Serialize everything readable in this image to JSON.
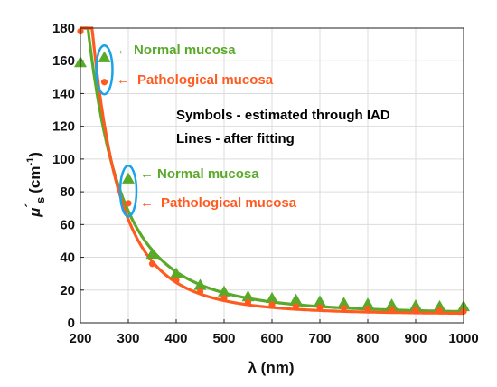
{
  "chart_data": {
    "type": "scatter",
    "title": "",
    "xlabel": "λ (nm)",
    "ylabel_main": "μ",
    "ylabel_prime": "´",
    "ylabel_sub": "s",
    "ylabel_unit_open": "(cm",
    "ylabel_unit_exp": "-1",
    "ylabel_unit_close": ")",
    "xlim": [
      200,
      1000
    ],
    "ylim": [
      0,
      180
    ],
    "xticks": [
      200,
      300,
      400,
      500,
      600,
      700,
      800,
      900,
      1000
    ],
    "yticks": [
      0,
      20,
      40,
      60,
      80,
      100,
      120,
      140,
      160,
      180
    ],
    "grid": true,
    "x": [
      200,
      350,
      400,
      450,
      500,
      550,
      600,
      650,
      700,
      750,
      800,
      850,
      900,
      950,
      1000
    ],
    "series": [
      {
        "name": "Normal mucosa",
        "marker": "triangle",
        "color": "#5aaa2a",
        "values": [
          159,
          42,
          30,
          23,
          19,
          16,
          15,
          14,
          13,
          12,
          11.5,
          11,
          10.5,
          10,
          10
        ]
      },
      {
        "name": "Pathological mucosa",
        "marker": "circle",
        "color": "#ff5a1f",
        "values": [
          178,
          36,
          26,
          19,
          15,
          12.5,
          11,
          10,
          9.5,
          9,
          8.5,
          8,
          8,
          7.5,
          7
        ]
      }
    ],
    "fits": [
      {
        "series": "Normal mucosa",
        "color": "#5aaa2a",
        "a": 3000000000.0,
        "b": 3.1,
        "c": 5.4
      },
      {
        "series": "Pathological mucosa",
        "color": "#ff5a1f",
        "a": 150000000000.0,
        "b": 3.8,
        "c": 5.2
      }
    ],
    "annotations": {
      "group1": {
        "normal_label": "Normal mucosa",
        "pathological_label": "Pathological mucosa",
        "arrow": "←",
        "normal_y": 162,
        "pathological_y": 147,
        "x": 250
      },
      "group2": {
        "normal_label": "Normal mucosa",
        "pathological_label": "Pathological mucosa",
        "arrow": "←",
        "normal_y": 88,
        "pathological_y": 73,
        "x": 300
      },
      "note_line1": "Symbols - estimated through IAD",
      "note_line2": "Lines - after fitting",
      "ellipse_color": "#1aa3e8"
    }
  }
}
